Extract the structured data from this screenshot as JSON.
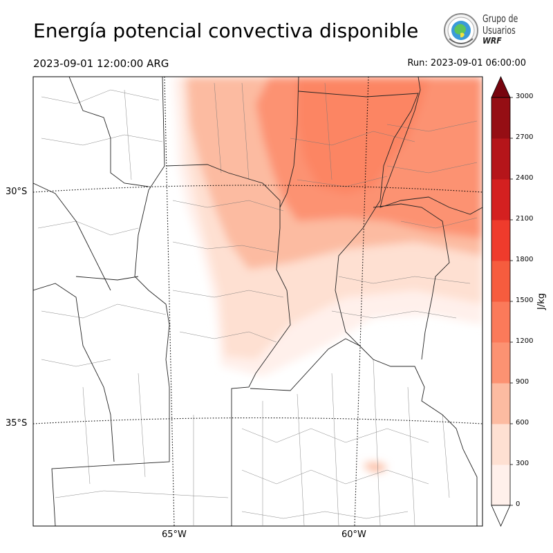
{
  "header": {
    "title": "Energía potencial convectiva disponible",
    "valid_time": "2023-09-01 12:00:00 ARG",
    "run_time": "Run: 2023-09-01 06:00:00"
  },
  "logo": {
    "line1": "Grupo de",
    "line2": "Usuarios",
    "line3": "WRF"
  },
  "map": {
    "lat_labels": [
      "30°S",
      "35°S"
    ],
    "lon_labels": [
      "65°W",
      "60°W"
    ]
  },
  "colorbar": {
    "unit": "J/kg",
    "ticks": [
      "0",
      "300",
      "600",
      "900",
      "1200",
      "1500",
      "1800",
      "2100",
      "2400",
      "2700",
      "3000"
    ],
    "colors": [
      "#fff0eb",
      "#fee0d2",
      "#fcbba1",
      "#fc9272",
      "#fb7a5a",
      "#f65c3e",
      "#ef3b2c",
      "#d42020",
      "#b5151a",
      "#950e14",
      "#77040e"
    ],
    "extend": "both"
  }
}
